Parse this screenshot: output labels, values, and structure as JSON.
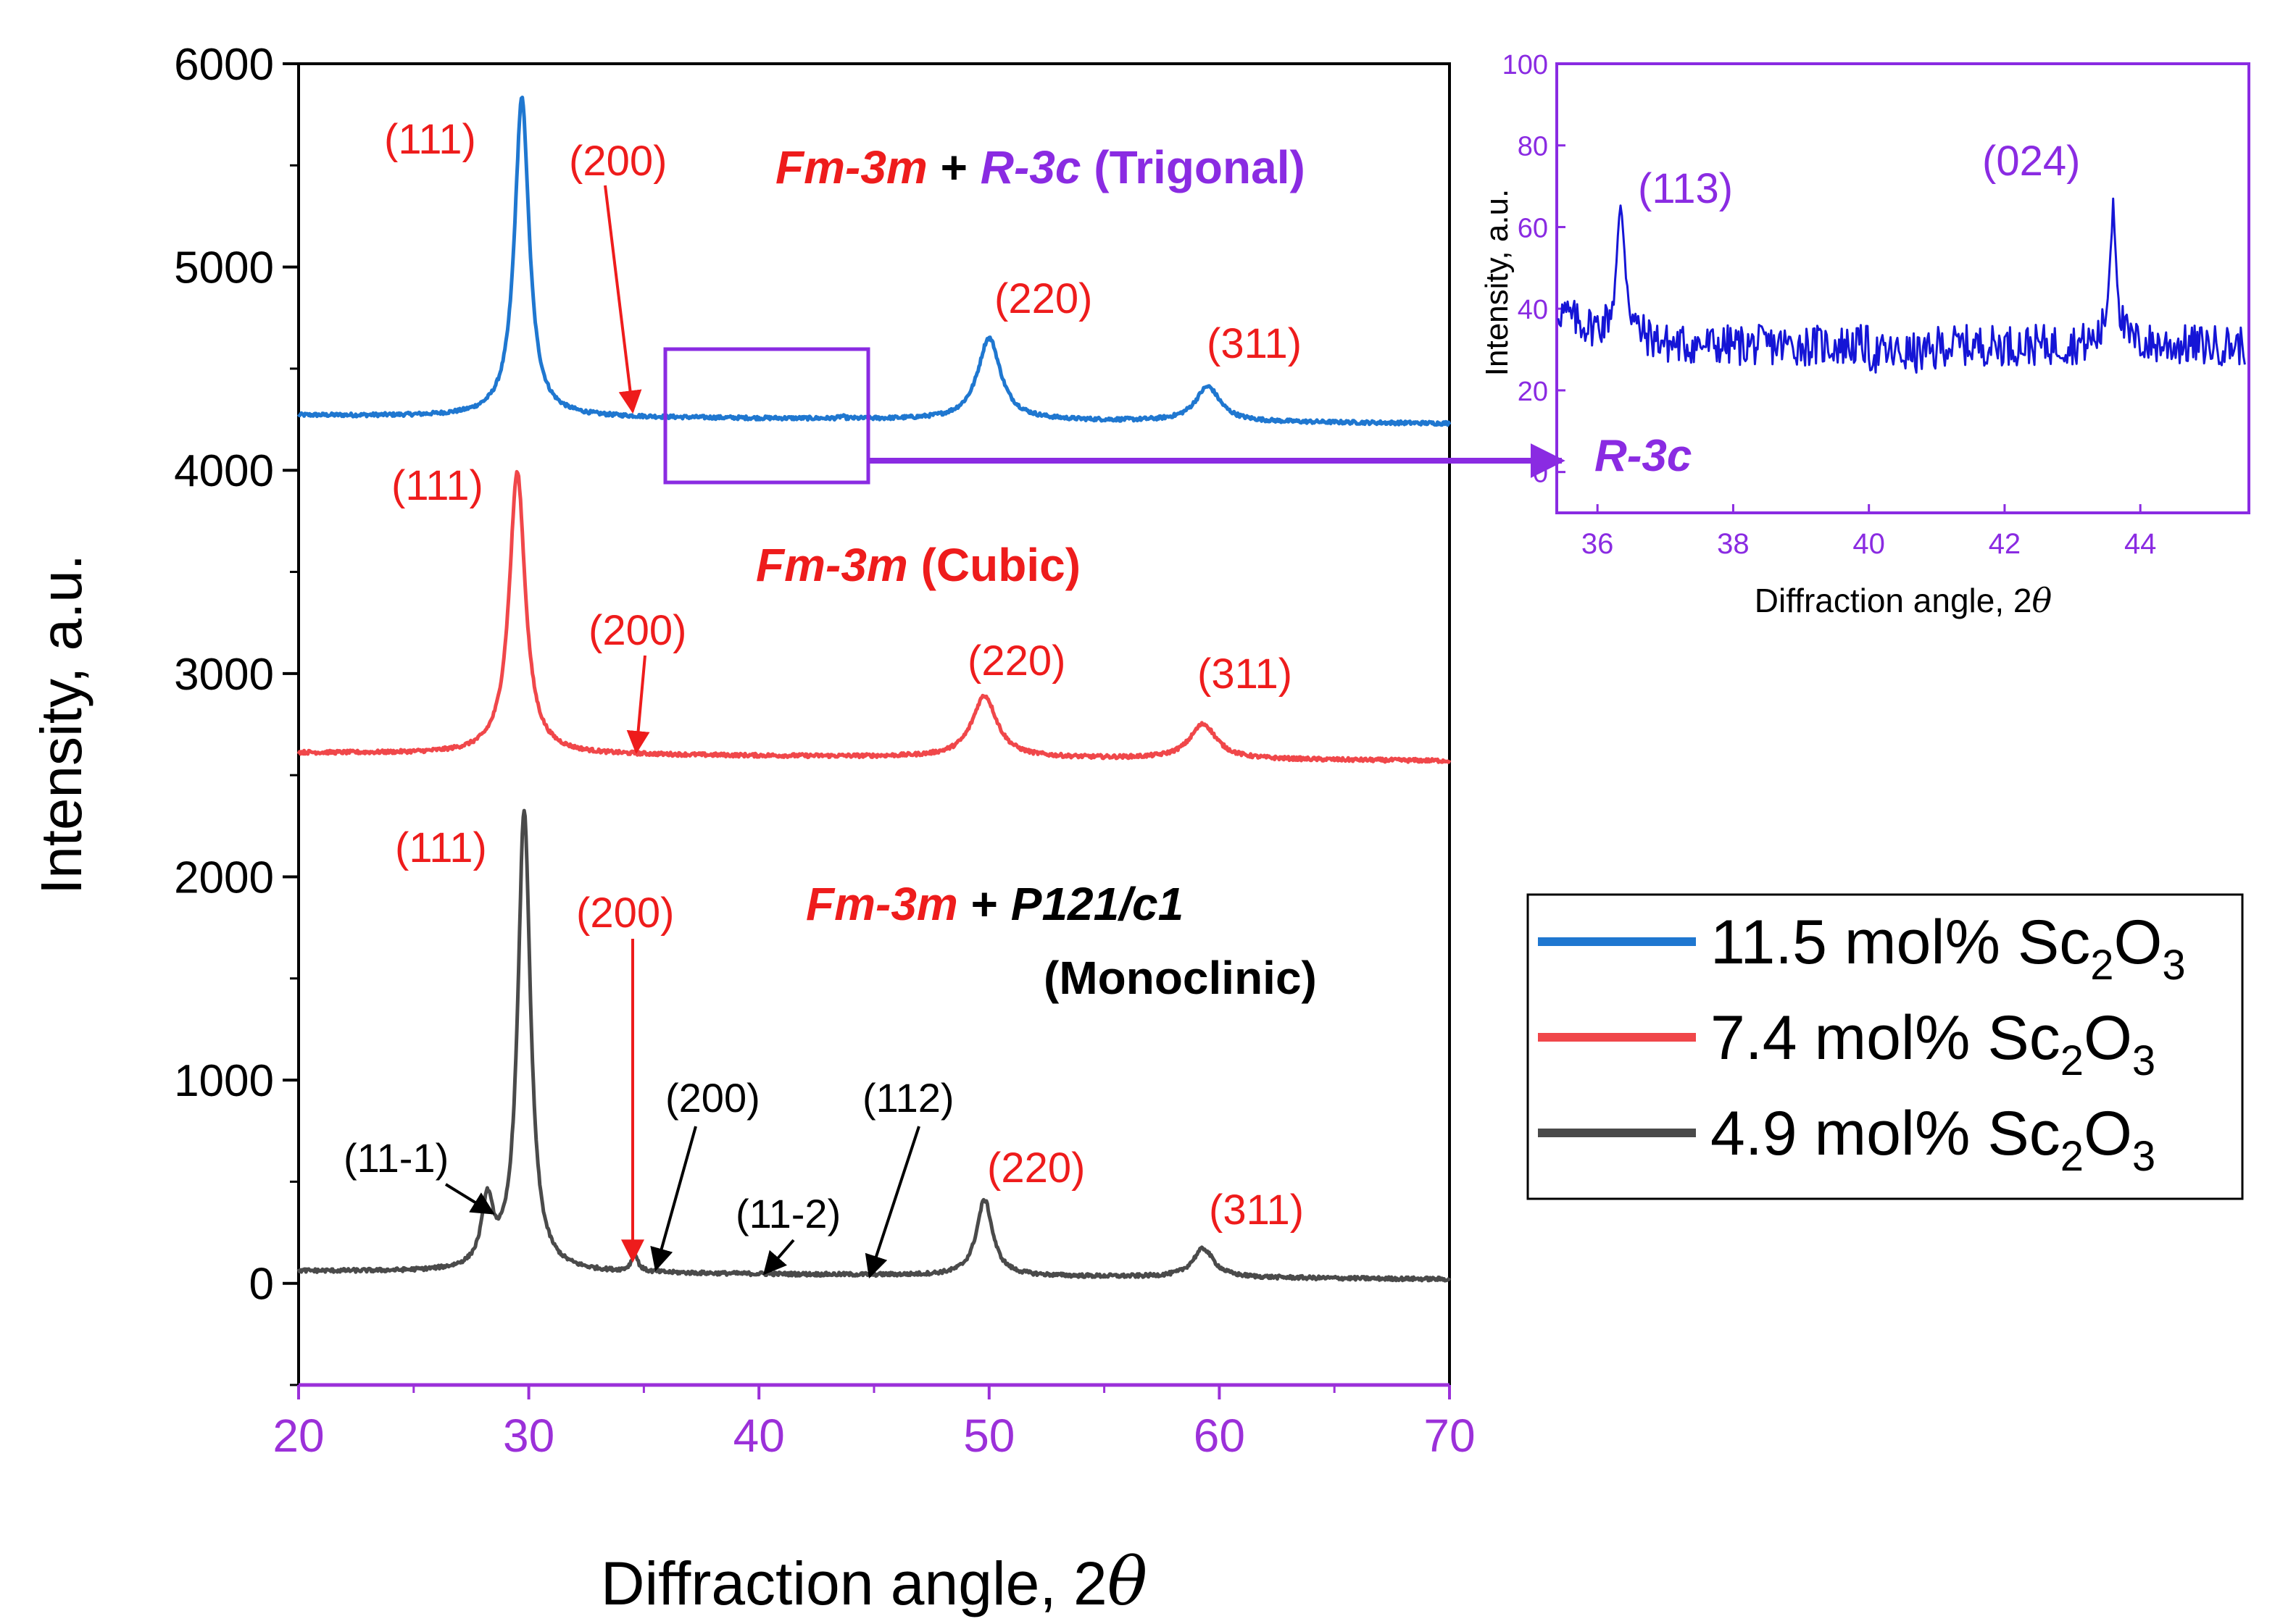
{
  "chart_data": [
    {
      "type": "line",
      "xlabel": "Diffraction angle, 2",
      "xlabel_symbol": "θ",
      "ylabel": "Intensity, a.u.",
      "xlim": [
        20,
        70
      ],
      "ylim": [
        -500,
        6000
      ],
      "xticks": [
        "20",
        "30",
        "40",
        "50",
        "60",
        "70"
      ],
      "yticks": [
        "0",
        "1000",
        "2000",
        "3000",
        "4000",
        "5000",
        "6000"
      ],
      "series": [
        {
          "name_prefix": "11.5 mol% Sc",
          "name_sub1": "2",
          "name_mid": "O",
          "name_sub2": "3",
          "color": "#1f77d0",
          "baseline_start": 4270,
          "baseline_end": 4230,
          "peaks": [
            {
              "x": 29.7,
              "y": 5830,
              "width": 0.38
            },
            {
              "x": 50.0,
              "y": 4650,
              "width": 0.6
            },
            {
              "x": 59.5,
              "y": 4410,
              "width": 0.65
            },
            {
              "x": 43.6,
              "y": 4262,
              "width": 0.12
            }
          ]
        },
        {
          "name_prefix": "7.4 mol% Sc",
          "name_sub1": "2",
          "name_mid": "O",
          "name_sub2": "3",
          "color": "#f0474a",
          "baseline_start": 2610,
          "baseline_end": 2570,
          "peaks": [
            {
              "x": 29.5,
              "y": 3990,
              "width": 0.42
            },
            {
              "x": 49.8,
              "y": 2890,
              "width": 0.65
            },
            {
              "x": 59.3,
              "y": 2750,
              "width": 0.7
            }
          ]
        },
        {
          "name_prefix": "4.9 mol% Sc",
          "name_sub1": "2",
          "name_mid": "O",
          "name_sub2": "3",
          "color": "#4a4a4a",
          "baseline_start": 60,
          "baseline_end": 20,
          "peaks": [
            {
              "x": 29.8,
              "y": 2320,
              "width": 0.33
            },
            {
              "x": 28.2,
              "y": 370,
              "width": 0.3
            },
            {
              "x": 34.6,
              "y": 130,
              "width": 0.18
            },
            {
              "x": 49.8,
              "y": 410,
              "width": 0.42
            },
            {
              "x": 59.3,
              "y": 170,
              "width": 0.55
            }
          ]
        }
      ],
      "annotations": {
        "top": {
          "p111": "(111)",
          "p200": "(200)",
          "p220": "(220)",
          "p311": "(311)",
          "phase_fm": "Fm-3m",
          "phase_plus": " + ",
          "phase_r3c": "R-3c",
          "phase_trig": " (Trigonal)"
        },
        "mid": {
          "p111": "(111)",
          "p200": "(200)",
          "p220": "(220)",
          "p311": "(311)",
          "phase_fm": "Fm-3m",
          "phase_cubic": " (Cubic)"
        },
        "bot": {
          "p111": "(111)",
          "p200": "(200)",
          "p220": "(220)",
          "p311": "(311)",
          "m111": "(11-1)",
          "m200": "(200)",
          "m112n": "(11-2)",
          "m112": "(112)",
          "phase_fm": "Fm-3m",
          "phase_plus": " + ",
          "phase_p121": "P121/c1",
          "phase_mono": "(Monoclinic)"
        },
        "connector_label": "R-3c"
      },
      "colors": {
        "red": "#ee1c1c",
        "purple": "#8a2be2",
        "tick_purple": "#9b30d9",
        "axis": "#000000"
      }
    },
    {
      "type": "line",
      "xlabel": "Diffraction angle, 2",
      "xlabel_symbol": "θ",
      "ylabel": "Intensity, a.u.",
      "xlim": [
        35.4,
        45.6
      ],
      "ylim": [
        -10,
        100
      ],
      "xticks": [
        "36",
        "38",
        "40",
        "42",
        "44"
      ],
      "yticks": [
        "0",
        "20",
        "40",
        "60",
        "80",
        "100"
      ],
      "series": [
        {
          "name": "11.5 mol% Sc2O3 inset",
          "color": "#1515d6",
          "baseline": 31,
          "noise": 5,
          "peaks": [
            {
              "x": 36.35,
              "y": 62,
              "width": 0.08
            },
            {
              "x": 43.6,
              "y": 66,
              "width": 0.06
            }
          ]
        }
      ],
      "annotations": {
        "p113": "(113)",
        "p024": "(024)"
      }
    }
  ]
}
